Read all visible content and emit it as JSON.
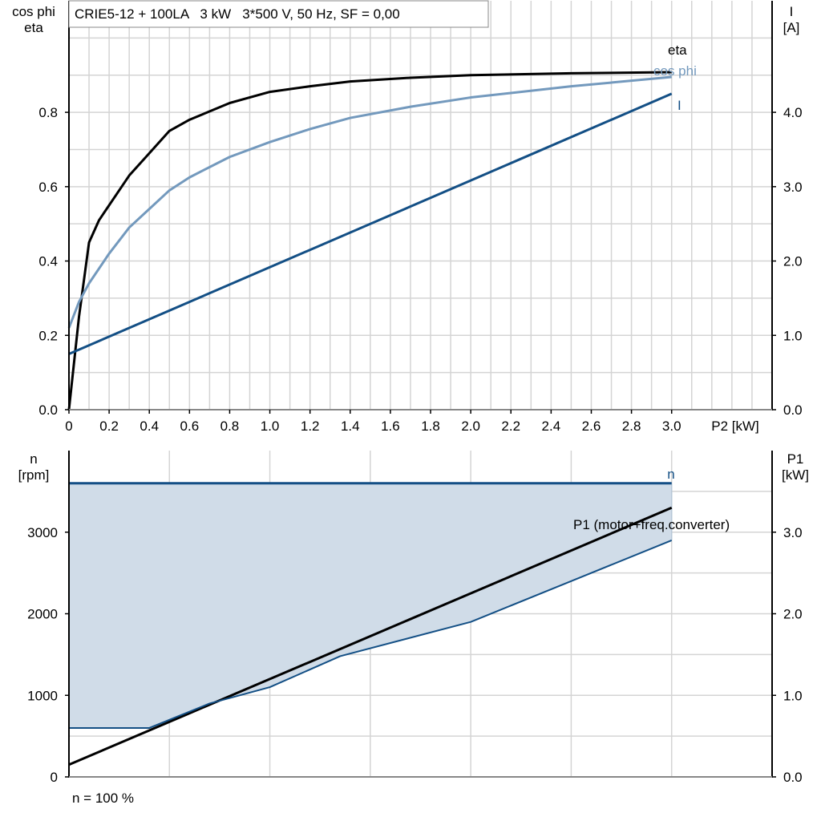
{
  "chart_data": [
    {
      "type": "line",
      "title": "CRIE5-12 + 100LA   3 kW   3*500 V, 50 Hz, SF = 0,00",
      "xlabel": "P2 [kW]",
      "ylabel_left": [
        "cos phi",
        "eta"
      ],
      "ylabel_right": [
        "I",
        "[A]"
      ],
      "xlim": [
        0,
        3.5
      ],
      "ylim_left": [
        0,
        1.1
      ],
      "ylim_right": [
        0,
        5.5
      ],
      "x_ticks": [
        "0",
        "0.2",
        "0.4",
        "0.6",
        "0.8",
        "1.0",
        "1.2",
        "1.4",
        "1.6",
        "1.8",
        "2.0",
        "2.2",
        "2.4",
        "2.6",
        "2.8",
        "3.0"
      ],
      "y_ticks_left": [
        "0.0",
        "0.2",
        "0.4",
        "0.6",
        "0.8"
      ],
      "y_ticks_right": [
        "0.0",
        "1.0",
        "2.0",
        "3.0",
        "4.0"
      ],
      "grid": true,
      "series": [
        {
          "name": "eta",
          "axis": "left",
          "color": "#000000",
          "x": [
            0,
            0.05,
            0.1,
            0.15,
            0.2,
            0.3,
            0.4,
            0.5,
            0.6,
            0.8,
            1.0,
            1.2,
            1.4,
            1.7,
            2.0,
            2.5,
            3.0
          ],
          "y": [
            0,
            0.25,
            0.45,
            0.51,
            0.55,
            0.63,
            0.69,
            0.75,
            0.78,
            0.825,
            0.855,
            0.87,
            0.883,
            0.893,
            0.9,
            0.905,
            0.908
          ]
        },
        {
          "name": "cos phi",
          "axis": "left",
          "color": "#7399bd",
          "x": [
            0,
            0.05,
            0.1,
            0.2,
            0.3,
            0.4,
            0.5,
            0.6,
            0.8,
            1.0,
            1.2,
            1.4,
            1.7,
            2.0,
            2.5,
            3.0
          ],
          "y": [
            0.22,
            0.29,
            0.34,
            0.42,
            0.49,
            0.54,
            0.59,
            0.625,
            0.68,
            0.72,
            0.755,
            0.785,
            0.815,
            0.84,
            0.87,
            0.895
          ]
        },
        {
          "name": "I",
          "axis": "right",
          "color": "#134f85",
          "x": [
            0,
            3.0
          ],
          "y": [
            0.75,
            4.25
          ]
        }
      ]
    },
    {
      "type": "line",
      "xlabel": "",
      "ylabel_left": [
        "n",
        "[rpm]"
      ],
      "ylabel_right": [
        "P1",
        "[kW]"
      ],
      "xlim": [
        0,
        3.5
      ],
      "ylim_left": [
        0,
        4000
      ],
      "ylim_right": [
        0,
        4.0
      ],
      "y_ticks_left": [
        "0",
        "1000",
        "2000",
        "3000"
      ],
      "y_ticks_right": [
        "0.0",
        "1.0",
        "2.0",
        "3.0"
      ],
      "grid": true,
      "footnote": "n = 100 %",
      "series": [
        {
          "name": "n",
          "axis": "left",
          "color": "#134f85",
          "x": [
            0,
            3.0
          ],
          "y": [
            3600,
            3600
          ]
        },
        {
          "name": "P1 (motor+freq.converter)",
          "axis": "right",
          "color": "#000000",
          "x": [
            0,
            3.0
          ],
          "y": [
            0.15,
            3.3
          ]
        },
        {
          "axis": "left",
          "color": "#134f85",
          "x": [
            0,
            0.4,
            0.7,
            1.0,
            1.35,
            2.0,
            2.5,
            3.0
          ],
          "y": [
            600,
            600,
            900,
            1100,
            1480,
            1900,
            2400,
            2900
          ]
        }
      ],
      "area_fill": "#d0dce8"
    }
  ]
}
